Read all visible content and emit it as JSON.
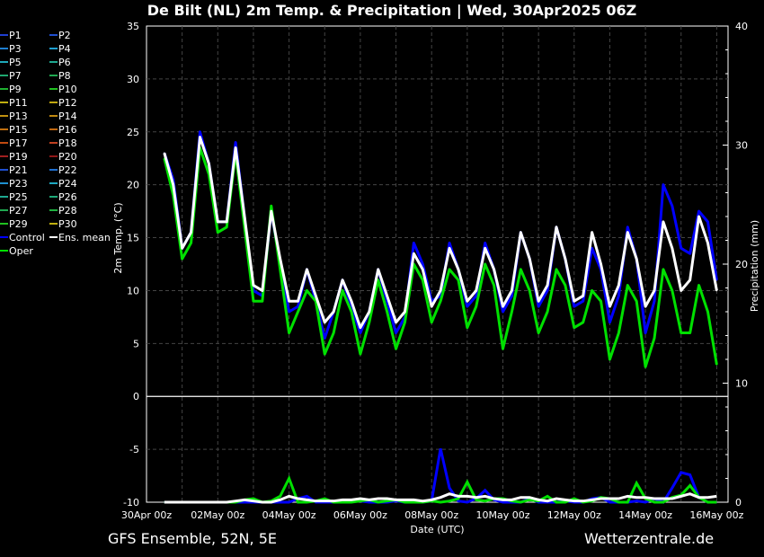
{
  "title": "De Bilt  (NL)  2m Temp. & Precipitation | Wed, 30Apr2025 06Z",
  "footer_left": "GFS Ensemble, 52N, 5E",
  "footer_right": "Wetterzentrale.de",
  "legend": [
    {
      "label": "P1",
      "color": "#1f3fd0"
    },
    {
      "label": "P2",
      "color": "#1f4fd0"
    },
    {
      "label": "P3",
      "color": "#1f7fd0"
    },
    {
      "label": "P4",
      "color": "#1f9fd0"
    },
    {
      "label": "P5",
      "color": "#1fa8b8"
    },
    {
      "label": "P6",
      "color": "#1fa890"
    },
    {
      "label": "P7",
      "color": "#1fa870"
    },
    {
      "label": "P8",
      "color": "#1fa850"
    },
    {
      "label": "P9",
      "color": "#1fb030"
    },
    {
      "label": "P10",
      "color": "#20c020"
    },
    {
      "label": "P11",
      "color": "#c0b010"
    },
    {
      "label": "P12",
      "color": "#c0a810"
    },
    {
      "label": "P13",
      "color": "#c09010"
    },
    {
      "label": "P14",
      "color": "#c08810"
    },
    {
      "label": "P15",
      "color": "#c07010"
    },
    {
      "label": "P16",
      "color": "#c06810"
    },
    {
      "label": "P17",
      "color": "#c04a10"
    },
    {
      "label": "P18",
      "color": "#c04020"
    },
    {
      "label": "P19",
      "color": "#a02020"
    },
    {
      "label": "P20",
      "color": "#901818"
    },
    {
      "label": "P21",
      "color": "#1f4fd0"
    },
    {
      "label": "P22",
      "color": "#1f6fd0"
    },
    {
      "label": "P23",
      "color": "#1f90d0"
    },
    {
      "label": "P24",
      "color": "#1fa8c0"
    },
    {
      "label": "P25",
      "color": "#1fa890"
    },
    {
      "label": "P26",
      "color": "#1fa878"
    },
    {
      "label": "P27",
      "color": "#1fa850"
    },
    {
      "label": "P28",
      "color": "#1fb040"
    },
    {
      "label": "P29",
      "color": "#20c020"
    },
    {
      "label": "P30",
      "color": "#c0b010"
    },
    {
      "label": "Control",
      "color": "#0000ff"
    },
    {
      "label": "Ens. mean",
      "color": "#ffffff"
    },
    {
      "label": "Oper",
      "color": "#00e000"
    }
  ],
  "chart_data": {
    "type": "line",
    "title": "De Bilt  (NL)  2m Temp. & Precipitation | Wed, 30Apr2025 06Z",
    "xlabel": "Date (UTC)",
    "ylabel": "2m Temp. (°C)",
    "ylabel_right": "Precipitation (mm)",
    "ylim": [
      -10,
      35
    ],
    "ylim_right": [
      0,
      40
    ],
    "yticks": [
      "-10",
      "-5",
      "0",
      "5",
      "10",
      "15",
      "20",
      "25",
      "30",
      "35"
    ],
    "yticks_right": [
      "0",
      "10",
      "20",
      "30",
      "40"
    ],
    "xticks": [
      "30Apr 00z",
      "02May 00z",
      "04May 00z",
      "06May 00z",
      "08May 00z",
      "10May 00z",
      "12May 00z",
      "14May 00z",
      "16May 00z"
    ],
    "xlim": [
      "30Apr 00z",
      "16May 06z"
    ],
    "grid": true,
    "legend_position": "left",
    "x_first": "30Apr 12z",
    "x_step": "6h",
    "temperature": {
      "Ens. mean": [
        23,
        20,
        14,
        15.5,
        24.5,
        22,
        16.5,
        16.5,
        23.5,
        17,
        10.5,
        10,
        17.5,
        13,
        9,
        9,
        12,
        9.5,
        7,
        8,
        11,
        9,
        6.5,
        8,
        12,
        9.5,
        7,
        8,
        13.5,
        12,
        8.5,
        10,
        14,
        12,
        9,
        10,
        14,
        12,
        8.5,
        10,
        15.5,
        13,
        9,
        10.5,
        16,
        13,
        9,
        9.5,
        15.5,
        12.5,
        8.5,
        10.5,
        15.5,
        13,
        8.5,
        10,
        16.5,
        14,
        10,
        11,
        17,
        14.5,
        10
      ],
      "Control": [
        23,
        20.5,
        14,
        15.5,
        25,
        22,
        16.5,
        16.5,
        24,
        17,
        10,
        9.5,
        17.5,
        12.5,
        8,
        8.5,
        12,
        9,
        5.5,
        8,
        11,
        8.5,
        6,
        8,
        12,
        9,
        6,
        7.5,
        14.5,
        12.5,
        9,
        9.5,
        14.5,
        12,
        8.5,
        9.5,
        14.5,
        12,
        8,
        9.5,
        15.5,
        13,
        8.5,
        10,
        16,
        13,
        8.5,
        9,
        14,
        12,
        7,
        9.5,
        16,
        13,
        6,
        9,
        20,
        18,
        14,
        13.5,
        17.5,
        16.5,
        11
      ],
      "Oper": [
        22.5,
        19,
        13,
        14.5,
        23.5,
        21,
        15.5,
        16,
        23,
        16,
        9,
        9,
        18,
        12,
        6,
        8,
        10,
        9,
        4,
        6,
        10,
        8,
        4,
        7,
        11,
        8,
        4.5,
        7,
        12.5,
        11,
        7,
        9,
        12,
        11,
        6.5,
        8.5,
        12.5,
        10.5,
        4.5,
        8,
        12,
        10,
        6,
        8,
        12,
        10.5,
        6.5,
        7,
        10,
        9,
        3.5,
        6,
        10.5,
        9,
        2.8,
        5.5,
        12,
        10,
        6,
        6,
        10.5,
        8,
        3
      ]
    },
    "precipitation": {
      "Ens. mean": [
        0,
        0,
        0,
        0,
        0,
        0,
        0,
        0,
        0.1,
        0.2,
        0.1,
        0,
        0,
        0.2,
        0.5,
        0.3,
        0.2,
        0.1,
        0.1,
        0.1,
        0.2,
        0.2,
        0.3,
        0.2,
        0.3,
        0.3,
        0.2,
        0.2,
        0.2,
        0.1,
        0.2,
        0.4,
        0.7,
        0.5,
        0.5,
        0.4,
        0.5,
        0.3,
        0.2,
        0.2,
        0.4,
        0.4,
        0.2,
        0.1,
        0.3,
        0.2,
        0.1,
        0.1,
        0.2,
        0.3,
        0.3,
        0.3,
        0.5,
        0.4,
        0.4,
        0.3,
        0.3,
        0.3,
        0.5,
        0.7,
        0.4,
        0.4,
        0.5
      ],
      "Control": [
        0,
        0,
        0,
        0,
        0,
        0,
        0,
        0,
        0,
        0,
        0,
        0,
        0,
        0,
        0,
        0.3,
        0.5,
        0,
        0,
        0,
        0,
        0.1,
        0.1,
        0,
        0,
        0,
        0.1,
        0,
        0,
        0,
        0.1,
        4.5,
        1.2,
        0.1,
        0,
        0.3,
        1.0,
        0.2,
        0,
        0,
        0,
        0.3,
        0,
        0,
        0,
        0.1,
        0,
        0,
        0.3,
        0.4,
        0,
        0,
        0,
        0.1,
        0,
        0.3,
        0,
        1.2,
        2.5,
        2.3,
        0.4,
        0,
        0
      ],
      "Oper": [
        0,
        0,
        0,
        0,
        0,
        0,
        0,
        0,
        0,
        0.2,
        0.3,
        0,
        0.1,
        0.5,
        2.0,
        0,
        0,
        0.1,
        0.3,
        0,
        0,
        0,
        0.1,
        0.2,
        0,
        0.1,
        0.2,
        0,
        0,
        0,
        0.1,
        0,
        0.1,
        0.3,
        1.7,
        0.2,
        0.1,
        0.3,
        0.3,
        0.1,
        0,
        0.2,
        0.1,
        0.5,
        0,
        0,
        0.3,
        0,
        0.1,
        0.4,
        0.3,
        0,
        0,
        1.6,
        0.3,
        0,
        0,
        0.4,
        0.6,
        1.4,
        0.4,
        0,
        0
      ]
    }
  }
}
